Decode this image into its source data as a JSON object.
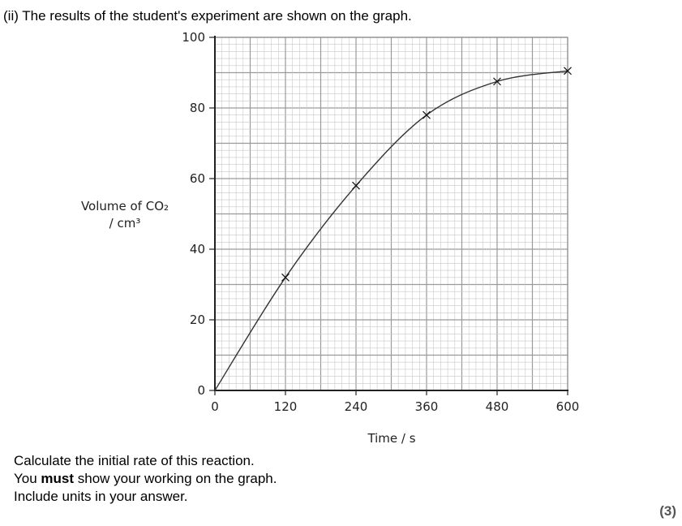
{
  "question": {
    "heading": "(ii)  The results of the student's experiment are shown on the graph.",
    "instruction_1": "Calculate the initial rate of this reaction.",
    "instruction_2_pre": "You ",
    "instruction_2_bold": "must",
    "instruction_2_post": " show your working on the graph.",
    "instruction_3": "Include units in your answer.",
    "marks": "(3)"
  },
  "chart_data": {
    "type": "line",
    "xlabel": "Time / s",
    "ylabel_line1": "Volume of CO₂",
    "ylabel_line2": "/ cm³",
    "xlim": [
      0,
      600
    ],
    "ylim": [
      0,
      100
    ],
    "x_ticks": [
      "0",
      "120",
      "240",
      "360",
      "480",
      "600"
    ],
    "y_ticks": [
      "0",
      "20",
      "40",
      "60",
      "80",
      "100"
    ],
    "grid": true,
    "series": [
      {
        "x": [
          0,
          120,
          240,
          360,
          480,
          600
        ],
        "y": [
          0,
          32,
          58,
          78,
          87.5,
          90.5
        ],
        "marker": "x",
        "color": "#333333"
      }
    ]
  }
}
